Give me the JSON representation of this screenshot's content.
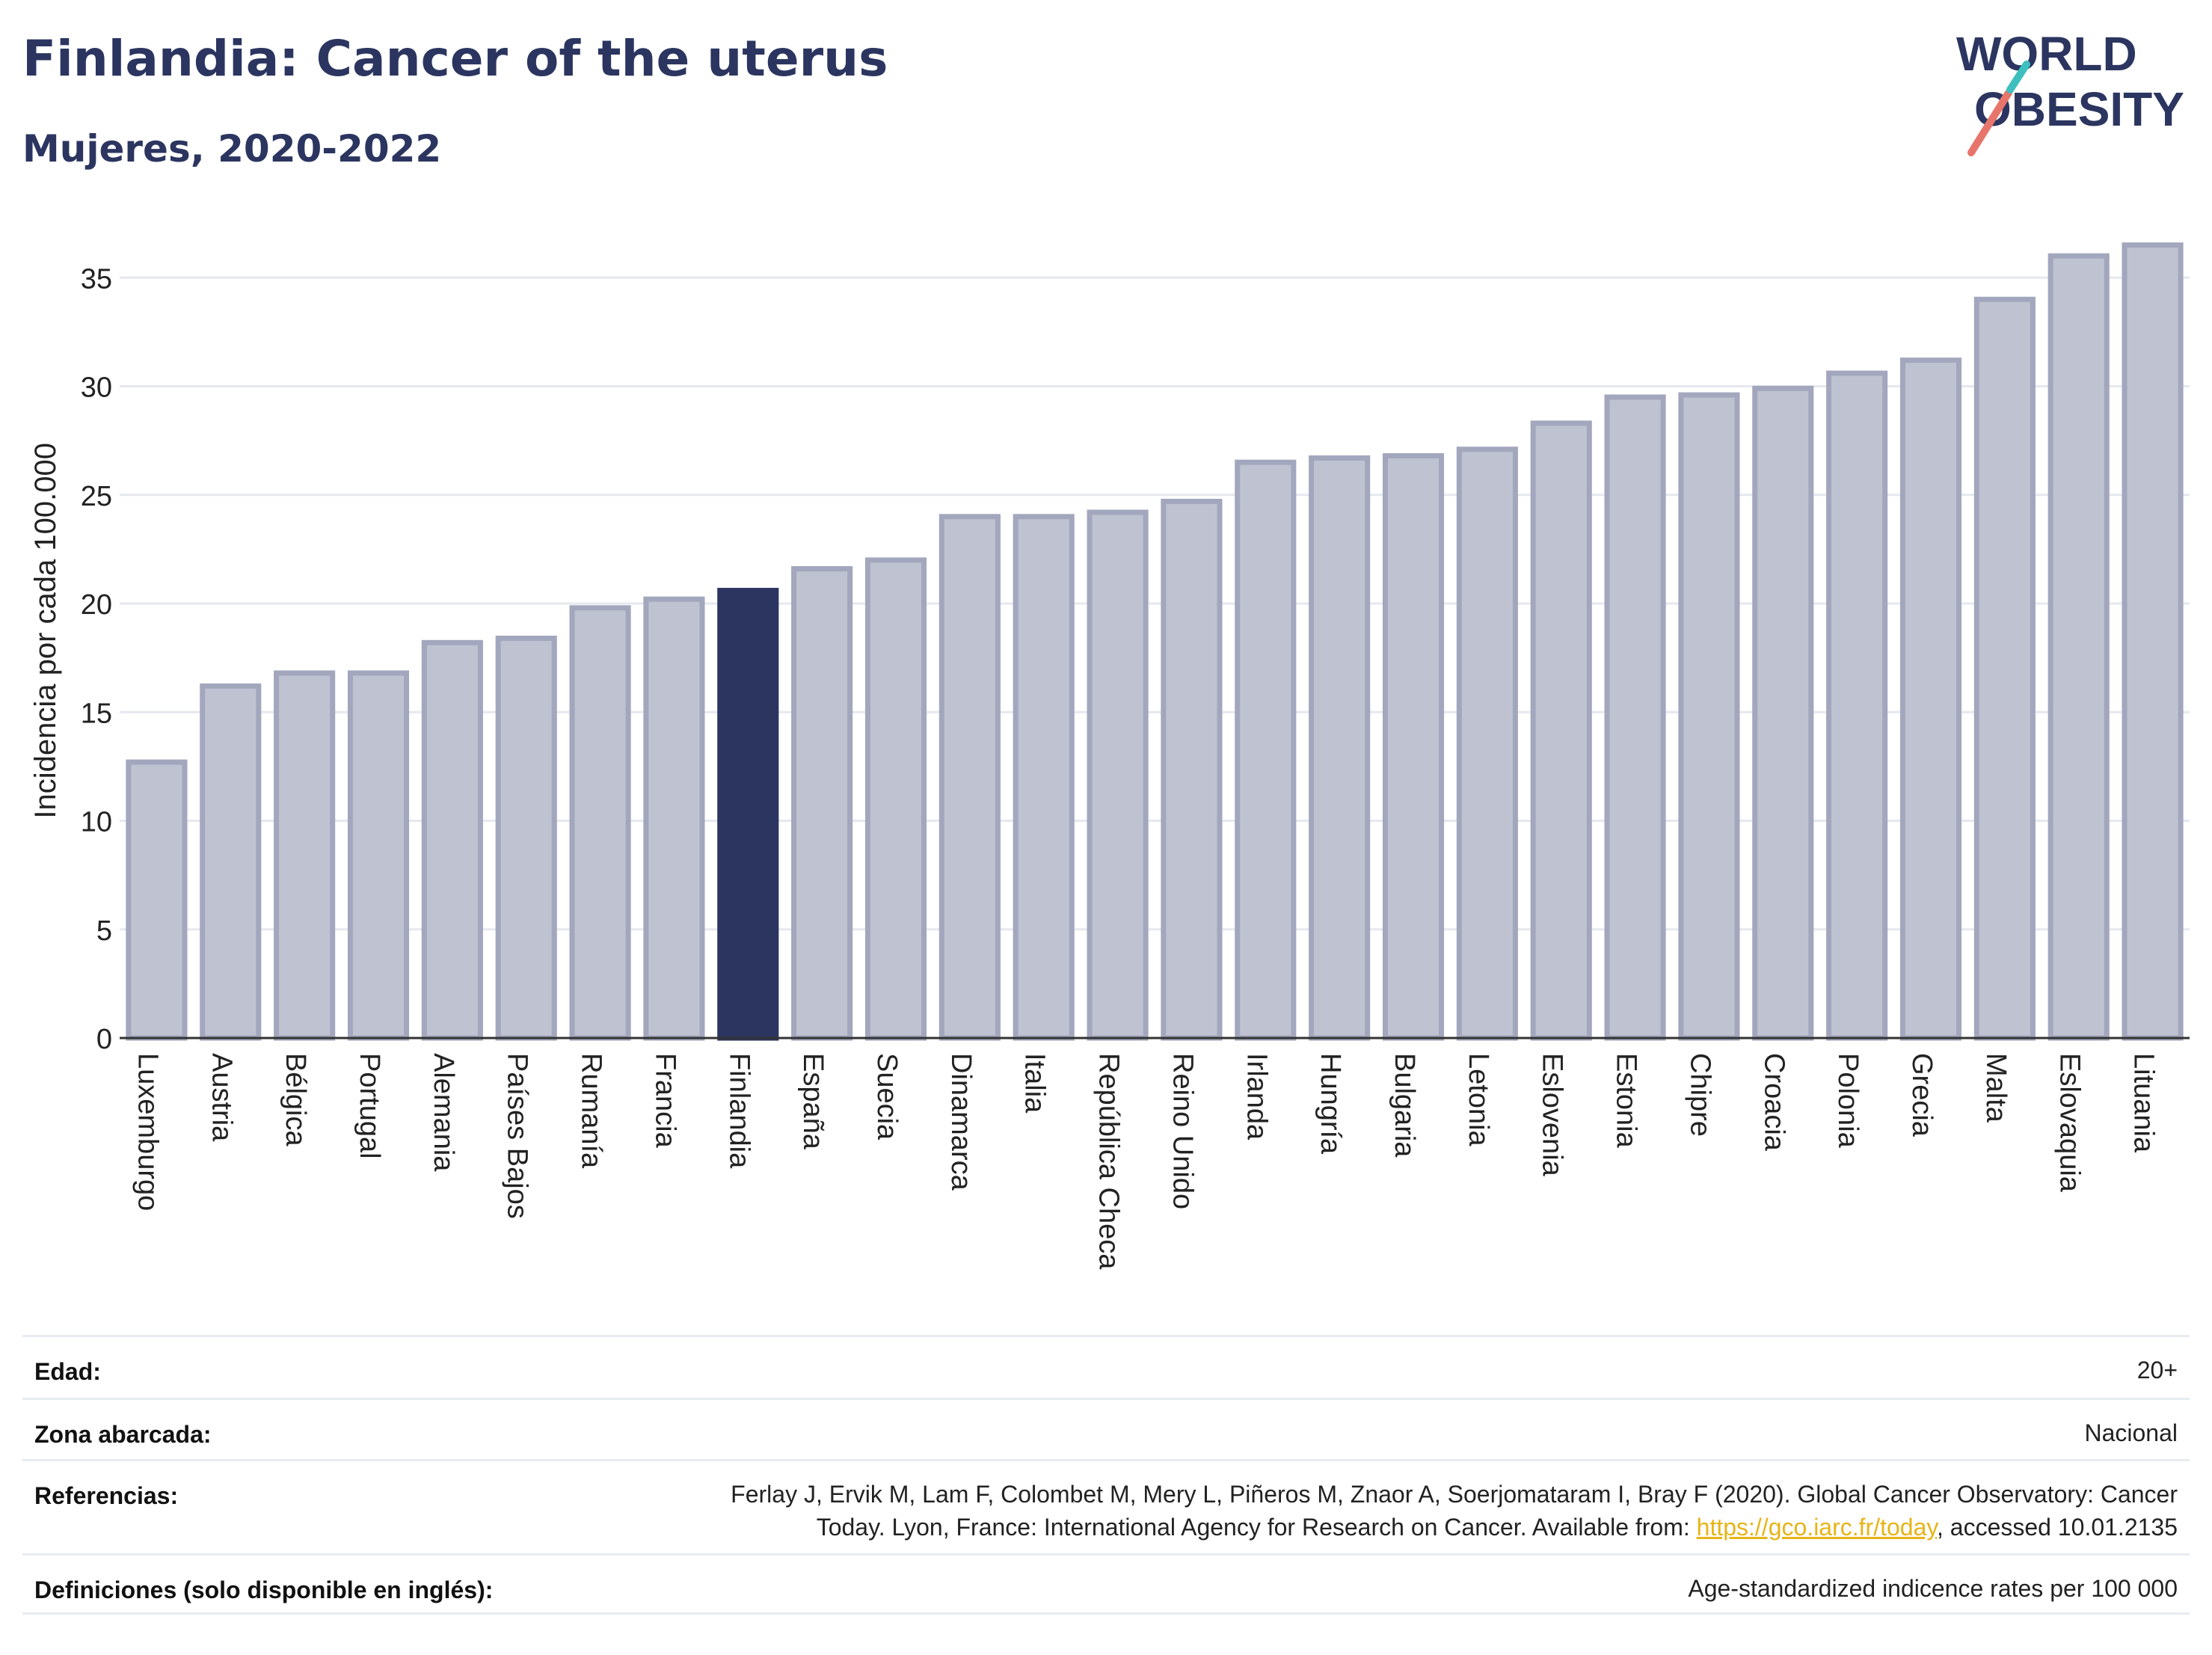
{
  "header": {
    "title": "Finlandia: Cancer of the uterus",
    "subtitle": "Mujeres, 2020-2022"
  },
  "logo": {
    "line1": "WORLD",
    "line2": "OBESITY",
    "accent_colors": [
      "#e8756b",
      "#3dbfc0"
    ]
  },
  "colors": {
    "bar": "#bfc2d0",
    "bar_border": "#a3a7bd",
    "highlight": "#2b3560",
    "grid": "#e5e8ee",
    "axis_text": "#222222"
  },
  "chart_data": {
    "type": "bar",
    "categories": [
      "Luxemburgo",
      "Austria",
      "Bélgica",
      "Portugal",
      "Alemania",
      "Países Bajos",
      "Rumanía",
      "Francia",
      "Finlandia",
      "España",
      "Suecia",
      "Dinamarca",
      "Italia",
      "República Checa",
      "Reino Unido",
      "Irlanda",
      "Hungría",
      "Bulgaria",
      "Letonia",
      "Eslovenia",
      "Estonia",
      "Chipre",
      "Croacia",
      "Polonia",
      "Grecia",
      "Malta",
      "Eslovaquia",
      "Lituania"
    ],
    "values": [
      12.7,
      16.2,
      16.8,
      16.8,
      18.2,
      18.4,
      19.8,
      20.2,
      20.6,
      21.6,
      22.0,
      24.0,
      24.0,
      24.2,
      24.7,
      26.5,
      26.7,
      26.8,
      27.1,
      28.3,
      29.5,
      29.6,
      29.9,
      30.6,
      31.2,
      34.0,
      36.0,
      36.5
    ],
    "highlight": "Finlandia",
    "ylabel": "Incidencia por cada 100.000",
    "xlabel": "",
    "ylim": [
      0,
      37.5
    ],
    "yticks": [
      0,
      5,
      10,
      15,
      20,
      25,
      30,
      35
    ],
    "grid": true
  },
  "meta": {
    "edad": {
      "label": "Edad:",
      "value": "20+"
    },
    "zona": {
      "label": "Zona abarcada:",
      "value": "Nacional"
    },
    "referencias": {
      "label": "Referencias:",
      "line1": "Ferlay J, Ervik M, Lam F, Colombet M, Mery L, Piñeros M, Znaor A, Soerjomataram I, Bray F (2020). Global Cancer Observatory: Cancer",
      "line2_before": "Today. Lyon, France: International Agency for Research on Cancer. Available from: ",
      "link": "https://gco.iarc.fr/today",
      "line2_after": ", accessed 10.01.2135"
    },
    "definiciones": {
      "label": "Definiciones (solo disponible en inglés):",
      "value": "Age-standardized indicence rates per 100 000"
    }
  }
}
